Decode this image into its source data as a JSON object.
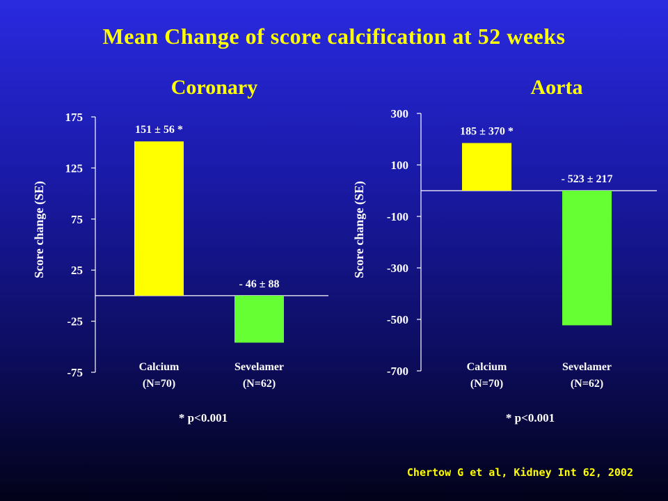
{
  "title": "Mean Change of score calcification at 52 weeks",
  "citation": "Chertow G et al, Kidney Int 62, 2002",
  "colors": {
    "title": "#ffff00",
    "calcium": "#ffff00",
    "sevelamer": "#66ff33",
    "text": "#ffffff"
  },
  "chart_data": [
    {
      "type": "bar",
      "title": "Coronary",
      "ylabel": "Score change (SE)",
      "xlabel": "",
      "ylim": [
        -75,
        175
      ],
      "yticks": [
        175,
        125,
        75,
        25,
        -25,
        -75
      ],
      "categories": [
        {
          "name": "Calcium",
          "n": "(N=70)"
        },
        {
          "name": "Sevelamer",
          "n": "(N=62)"
        }
      ],
      "values": [
        151,
        -46
      ],
      "data_labels": [
        "151 ± 56 *",
        "- 46 ± 88"
      ],
      "footnote": "* p<0.001"
    },
    {
      "type": "bar",
      "title": "Aorta",
      "ylabel": "Score change (SE)",
      "xlabel": "",
      "ylim": [
        -700,
        300
      ],
      "yticks": [
        300,
        100,
        -100,
        -300,
        -500,
        -700
      ],
      "categories": [
        {
          "name": "Calcium",
          "n": "(N=70)"
        },
        {
          "name": "Sevelamer",
          "n": "(N=62)"
        }
      ],
      "values": [
        185,
        -523
      ],
      "data_labels": [
        "185 ± 370 *",
        "- 523 ± 217"
      ],
      "footnote": "* p<0.001"
    }
  ]
}
